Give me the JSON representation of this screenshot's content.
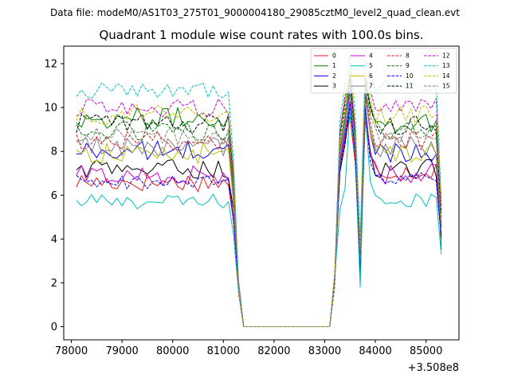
{
  "chart_data": {
    "type": "line",
    "suptitle": "Data file: modeM0/AS1T03_275T01_9000004180_29085cztM0_level2_quad_clean.evt",
    "title": "Quadrant 1 module wise count rates with 100.0s bins.",
    "xlabel": "",
    "ylabel": "",
    "x_offset_label": "+3.508e8",
    "xlim": [
      77850,
      85650
    ],
    "ylim": [
      -0.6,
      12.8
    ],
    "xticks": [
      78000,
      79000,
      80000,
      81000,
      82000,
      83000,
      84000,
      85000
    ],
    "xtick_labels": [
      "78000",
      "79000",
      "80000",
      "81000",
      "82000",
      "83000",
      "84000",
      "85000"
    ],
    "yticks": [
      0,
      2,
      4,
      6,
      8,
      10,
      12
    ],
    "ytick_labels": [
      "0",
      "2",
      "4",
      "6",
      "8",
      "10",
      "12"
    ],
    "x_start": 78100,
    "x_step": 100,
    "gap_start": 81400,
    "gap_end": 83100,
    "legend_location": "upper right",
    "series": [
      {
        "name": "0",
        "color": "#e41a1c",
        "dash": "solid",
        "level": 6.6,
        "spread": 0.45,
        "p1": 8.6,
        "p2": 9.6,
        "dip": 3.0,
        "p3": 7.1,
        "last": 4.2
      },
      {
        "name": "1",
        "color": "#008000",
        "dash": "solid",
        "level": 9.5,
        "spread": 0.5,
        "p1": 9.4,
        "p2": 11.6,
        "dip": 3.6,
        "p3": 9.3,
        "last": 3.5
      },
      {
        "name": "2",
        "color": "#0000ff",
        "dash": "solid",
        "level": 8.0,
        "spread": 0.5,
        "p1": 9.0,
        "p2": 10.9,
        "dip": 2.4,
        "p3": 8.0,
        "last": 4.5
      },
      {
        "name": "3",
        "color": "#000000",
        "dash": "solid",
        "level": 7.2,
        "spread": 0.45,
        "p1": 8.3,
        "p2": 10.0,
        "dip": 3.2,
        "p3": 7.2,
        "last": 4.1
      },
      {
        "name": "4",
        "color": "#cc00cc",
        "dash": "solid",
        "level": 6.9,
        "spread": 0.5,
        "p1": 8.8,
        "p2": 10.3,
        "dip": 3.5,
        "p3": 7.0,
        "last": 4.3
      },
      {
        "name": "5",
        "color": "#00bfbf",
        "dash": "solid",
        "level": 5.7,
        "spread": 0.35,
        "p1": 6.3,
        "p2": 10.0,
        "dip": 1.8,
        "p3": 5.8,
        "last": 3.3
      },
      {
        "name": "6",
        "color": "#bfbf00",
        "dash": "solid",
        "level": 7.9,
        "spread": 0.5,
        "p1": 10.4,
        "p2": 11.2,
        "dip": 3.0,
        "p3": 8.0,
        "last": 4.4
      },
      {
        "name": "7",
        "color": "#808080",
        "dash": "solid",
        "level": 8.2,
        "spread": 0.5,
        "p1": 9.1,
        "p2": 10.6,
        "dip": 3.4,
        "p3": 8.2,
        "last": 4.6
      },
      {
        "name": "8",
        "color": "#e41a1c",
        "dash": "dashed",
        "level": 8.5,
        "spread": 0.45,
        "p1": 9.5,
        "p2": 11.0,
        "dip": 3.4,
        "p3": 8.5,
        "last": 5.0
      },
      {
        "name": "9",
        "color": "#008000",
        "dash": "dashed",
        "level": 8.9,
        "spread": 0.45,
        "p1": 9.8,
        "p2": 11.0,
        "dip": 3.3,
        "p3": 9.0,
        "last": 4.6
      },
      {
        "name": "10",
        "color": "#0000ff",
        "dash": "dashed",
        "level": 6.6,
        "spread": 0.35,
        "p1": 8.5,
        "p2": 10.2,
        "dip": 3.0,
        "p3": 6.7,
        "last": 4.0
      },
      {
        "name": "11",
        "color": "#000000",
        "dash": "dashed",
        "level": 9.3,
        "spread": 0.45,
        "p1": 10.2,
        "p2": 11.3,
        "dip": 3.2,
        "p3": 9.2,
        "last": 5.2
      },
      {
        "name": "12",
        "color": "#cc00cc",
        "dash": "dashed",
        "level": 10.0,
        "spread": 0.45,
        "p1": 10.5,
        "p2": 11.4,
        "dip": 3.6,
        "p3": 10.0,
        "last": 5.5
      },
      {
        "name": "13",
        "color": "#00bfbf",
        "dash": "dashed",
        "level": 10.8,
        "spread": 0.4,
        "p1": 11.0,
        "p2": 12.4,
        "dip": 4.0,
        "p3": 10.9,
        "last": 5.8
      },
      {
        "name": "14",
        "color": "#bfbf00",
        "dash": "dashed",
        "level": 9.7,
        "spread": 0.5,
        "p1": 10.0,
        "p2": 11.8,
        "dip": 3.5,
        "p3": 9.7,
        "last": 5.6
      },
      {
        "name": "15",
        "color": "#808080",
        "dash": "dashed",
        "level": 8.7,
        "spread": 0.45,
        "p1": 9.6,
        "p2": 10.9,
        "dip": 3.1,
        "p3": 8.8,
        "last": 4.8
      }
    ]
  }
}
